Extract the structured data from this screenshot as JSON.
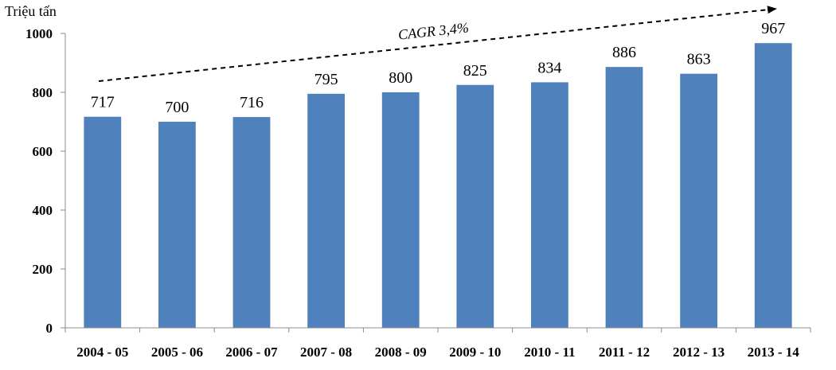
{
  "chart_data": {
    "type": "bar",
    "ylabel": "Triệu tấn",
    "categories": [
      "2004 - 05",
      "2005 - 06",
      "2006 - 07",
      "2007 - 08",
      "2008 - 09",
      "2009 - 10",
      "2010 - 11",
      "2011 - 12",
      "2012 - 13",
      "2013 - 14"
    ],
    "values": [
      717,
      700,
      716,
      795,
      800,
      825,
      834,
      886,
      863,
      967
    ],
    "ylim": [
      0,
      1000
    ],
    "yticks": [
      0,
      200,
      400,
      600,
      800,
      1000
    ],
    "grid": false,
    "bar_color": "#4f81bd",
    "annotation": {
      "text": "CAGR 3,4%",
      "style": "dashed trend arrow"
    }
  }
}
